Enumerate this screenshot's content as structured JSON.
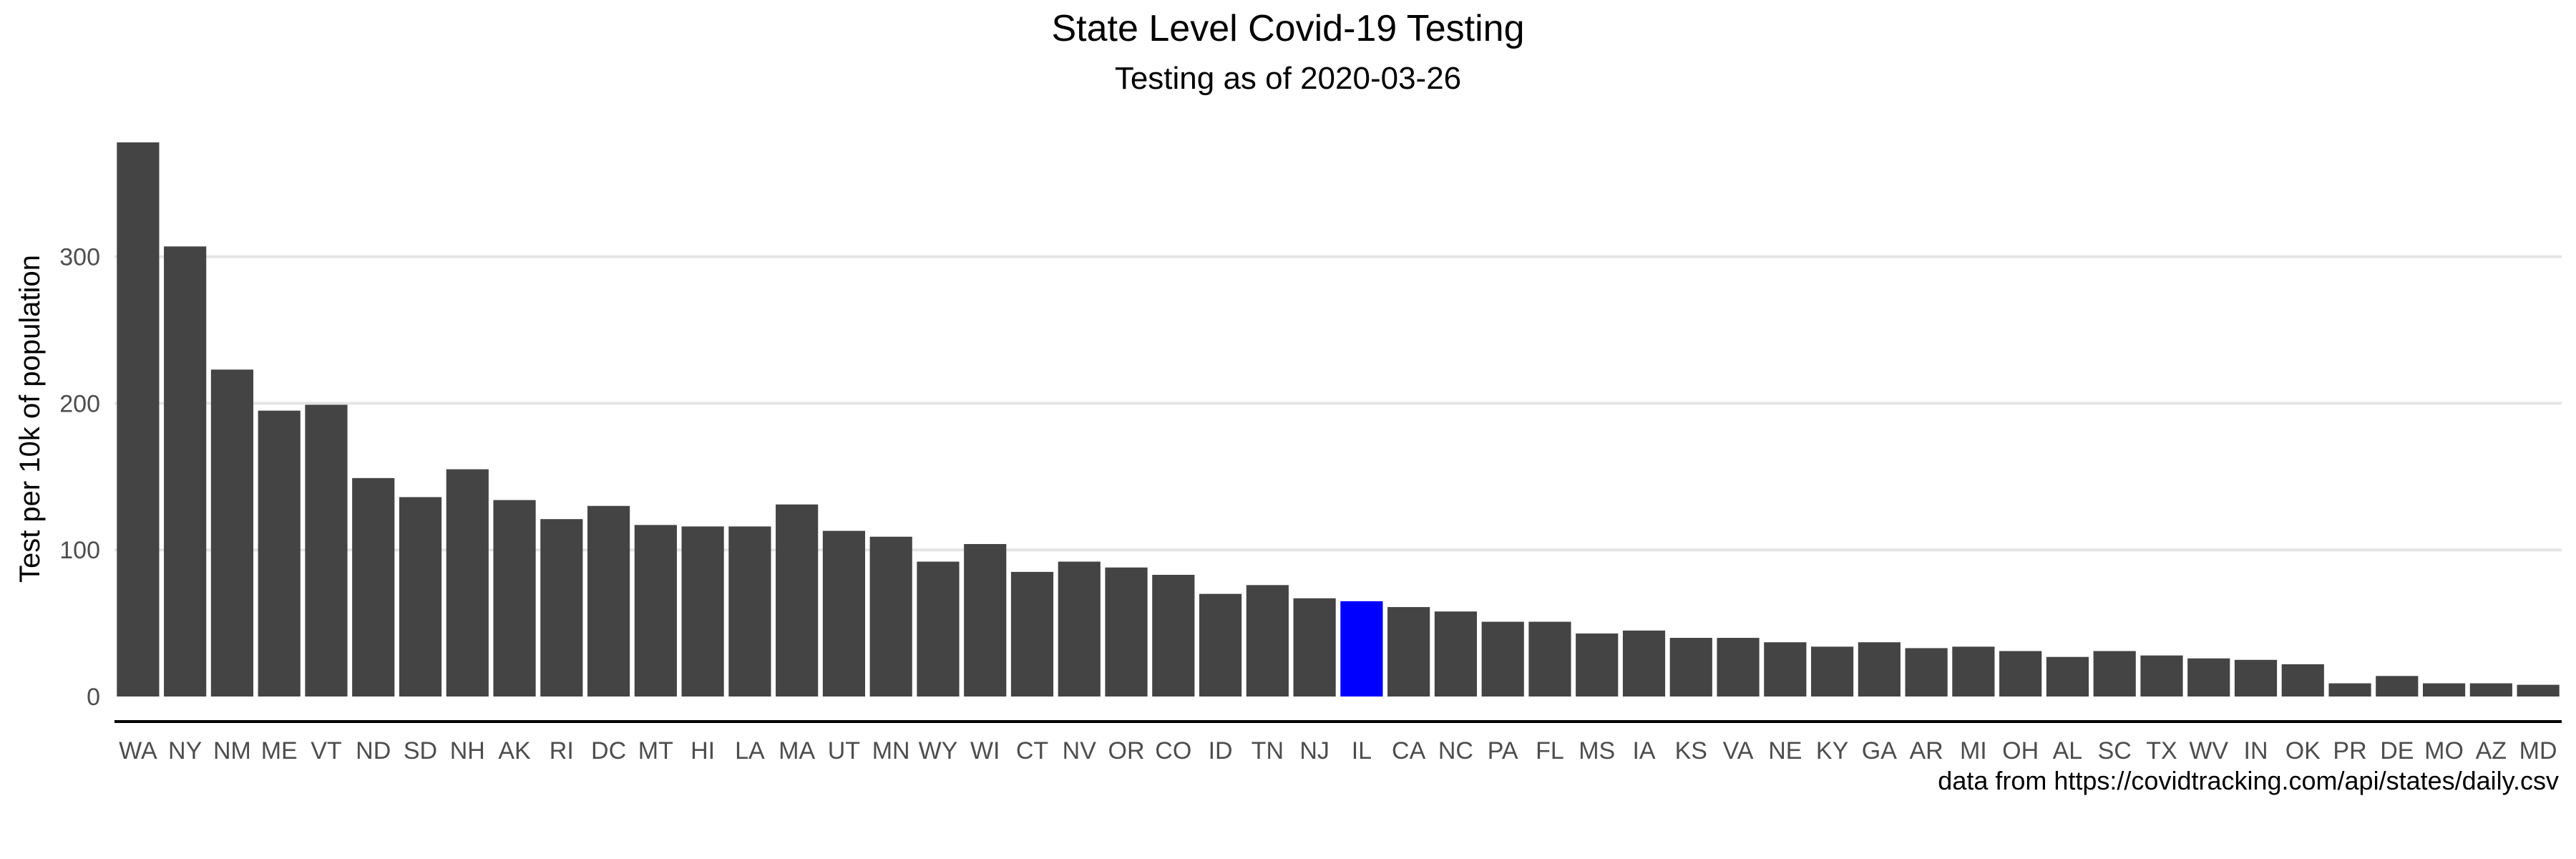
{
  "chart_data": {
    "type": "bar",
    "title": "State Level Covid-19 Testing",
    "subtitle": "Testing as of 2020-03-26",
    "xlabel": "",
    "ylabel": "Test per 10k of population",
    "caption": "data from https://covidtracking.com/api/states/daily.csv",
    "ylim": [
      0,
      380
    ],
    "yticks": [
      0,
      100,
      200,
      300
    ],
    "grid": "horizontal major lines",
    "legend": "none",
    "bar_color": "#444444",
    "highlight_color": "#0000ff",
    "highlight_category": "IL",
    "categories": [
      "WA",
      "NY",
      "NM",
      "ME",
      "VT",
      "ND",
      "SD",
      "NH",
      "AK",
      "RI",
      "DC",
      "MT",
      "HI",
      "LA",
      "MA",
      "UT",
      "MN",
      "WY",
      "WI",
      "CT",
      "NV",
      "OR",
      "CO",
      "ID",
      "TN",
      "NJ",
      "IL",
      "CA",
      "NC",
      "PA",
      "FL",
      "MS",
      "IA",
      "KS",
      "VA",
      "NE",
      "KY",
      "GA",
      "AR",
      "MI",
      "OH",
      "AL",
      "SC",
      "TX",
      "WV",
      "IN",
      "OK",
      "PR",
      "DE",
      "MO",
      "AZ",
      "MD"
    ],
    "values": [
      378,
      307,
      223,
      195,
      199,
      149,
      136,
      155,
      134,
      121,
      130,
      117,
      116,
      116,
      131,
      113,
      109,
      92,
      104,
      85,
      92,
      88,
      83,
      70,
      76,
      67,
      65,
      61,
      58,
      51,
      51,
      43,
      45,
      40,
      40,
      37,
      34,
      37,
      33,
      34,
      31,
      27,
      31,
      28,
      26,
      25,
      22,
      9,
      14,
      9,
      9,
      8
    ]
  }
}
